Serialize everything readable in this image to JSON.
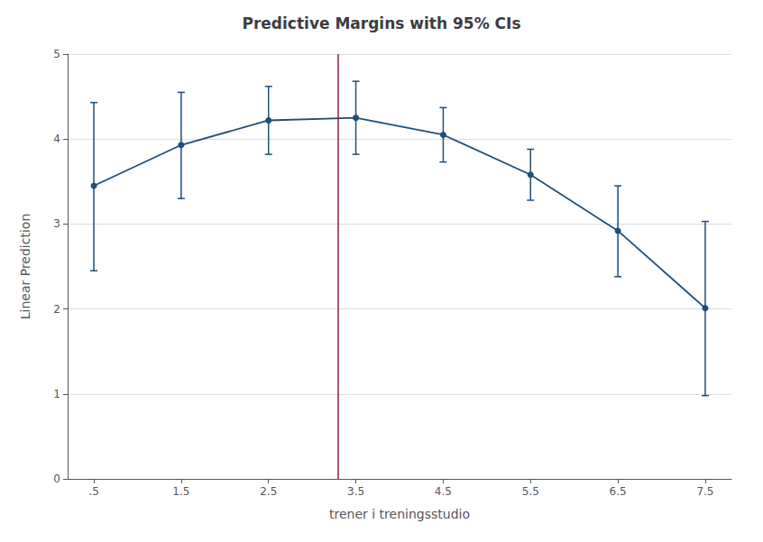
{
  "chart_data": {
    "type": "line",
    "title": "Predictive Margins with 95% CIs",
    "xlabel": "trener i treningsstudio",
    "ylabel": "Linear Prediction",
    "x": [
      0.5,
      1.5,
      2.5,
      3.5,
      4.5,
      5.5,
      6.5,
      7.5
    ],
    "values": [
      3.45,
      3.93,
      4.22,
      4.25,
      4.05,
      3.58,
      2.92,
      2.01
    ],
    "ci_lower": [
      2.45,
      3.3,
      3.82,
      3.82,
      3.73,
      3.28,
      2.38,
      0.98
    ],
    "ci_upper": [
      4.43,
      4.55,
      4.62,
      4.68,
      4.37,
      3.88,
      3.45,
      3.03
    ],
    "color": "#1F4E79",
    "marker": "circle",
    "reference_lines": [
      {
        "x": 3.3,
        "color": "#8B2035"
      }
    ],
    "xlim": [
      0.2,
      7.8
    ],
    "xticks": [
      {
        "value": 0.5,
        "label": ".5"
      },
      1.5,
      2.5,
      3.5,
      4.5,
      5.5,
      6.5,
      7.5
    ],
    "ylim": [
      0,
      5
    ],
    "yticks": [
      0,
      1,
      2,
      3,
      4,
      5
    ],
    "grid": true
  }
}
